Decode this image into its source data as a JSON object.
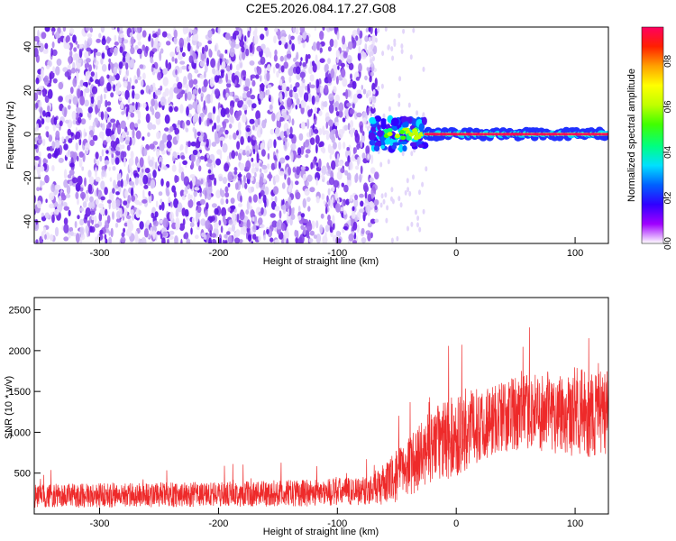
{
  "figure": {
    "title": "C2E5.2026.084.17.27.G08"
  },
  "chart_data": [
    {
      "type": "heatmap",
      "xlabel": "Height of straight line (km)",
      "ylabel": "Frequency (Hz)",
      "xlim": [
        -355,
        128
      ],
      "ylim": [
        -50,
        49
      ],
      "x_ticks": [
        -300,
        -200,
        -100,
        0,
        100
      ],
      "x_tick_labels": [
        "-300",
        "-200",
        "-100",
        "0",
        "100"
      ],
      "y_ticks": [
        -40,
        -20,
        0,
        20,
        40
      ],
      "y_tick_labels": [
        "-40",
        "-20",
        "0",
        "20",
        "40"
      ],
      "noise_region_x": [
        -355,
        -75
      ],
      "transition_x": [
        -75,
        -25
      ],
      "signal_line": {
        "frequency_hz": 0,
        "x_range": [
          -25,
          128
        ]
      },
      "colorbar": {
        "label": "Normalized spectral amplitude",
        "range": [
          0,
          0.95
        ],
        "ticks": [
          0.0,
          0.2,
          0.4,
          0.6,
          0.8
        ],
        "tick_labels": [
          "0.0",
          "0.2",
          "0.4",
          "0.6",
          "0.8"
        ],
        "colors": [
          "#ffffff",
          "#a000ff",
          "#3000ff",
          "#0060ff",
          "#00e0ff",
          "#00ff80",
          "#40ff00",
          "#c0ff00",
          "#ffff00",
          "#ffa000",
          "#ff2000",
          "#ff0060"
        ]
      }
    },
    {
      "type": "line",
      "xlabel": "Height of straight line (km)",
      "ylabel": "SNR (10 * v/v)",
      "xlim": [
        -355,
        128
      ],
      "ylim": [
        0,
        2650
      ],
      "x_ticks": [
        -300,
        -200,
        -100,
        0,
        100
      ],
      "x_tick_labels": [
        "-300",
        "-200",
        "-100",
        "0",
        "100"
      ],
      "y_ticks": [
        500,
        1000,
        1500,
        2000,
        2500
      ],
      "y_tick_labels": [
        "500",
        "1000",
        "1500",
        "2000",
        "2500"
      ],
      "color": "#ee2a2a",
      "envelope_x": [
        -355,
        -300,
        -200,
        -150,
        -100,
        -75,
        -60,
        -45,
        -30,
        -20,
        -10,
        0,
        20,
        40,
        60,
        80,
        100,
        110,
        128
      ],
      "envelope_mean": [
        220,
        230,
        240,
        250,
        270,
        290,
        360,
        520,
        700,
        850,
        900,
        950,
        1100,
        1200,
        1250,
        1250,
        1250,
        1200,
        1250
      ],
      "envelope_spread": [
        140,
        150,
        150,
        160,
        170,
        180,
        250,
        350,
        400,
        450,
        500,
        500,
        450,
        450,
        450,
        500,
        550,
        550,
        500
      ]
    }
  ]
}
